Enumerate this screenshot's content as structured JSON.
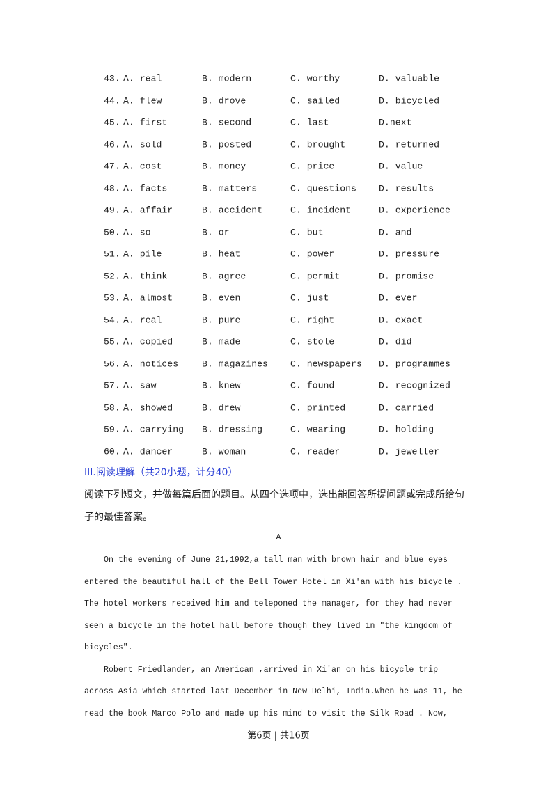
{
  "questions": [
    {
      "number": "43.",
      "options": [
        "A. real",
        "B. modern",
        "C. worthy",
        "D. valuable"
      ]
    },
    {
      "number": "44.",
      "options": [
        "A. flew",
        "B. drove",
        "C. sailed",
        "D. bicycled"
      ]
    },
    {
      "number": "45.",
      "options": [
        "A. first",
        "B. second",
        "C. last",
        "D.next"
      ]
    },
    {
      "number": "46.",
      "options": [
        "A. sold",
        "B. posted",
        "C. brought",
        "D. returned"
      ]
    },
    {
      "number": "47.",
      "options": [
        "A. cost",
        "B. money",
        "C. price",
        "D. value"
      ]
    },
    {
      "number": "48.",
      "options": [
        "A. facts",
        "B. matters",
        "C. questions",
        "D. results"
      ]
    },
    {
      "number": "49.",
      "options": [
        "A. affair",
        "B. accident",
        "C. incident",
        "D. experience"
      ]
    },
    {
      "number": "50.",
      "options": [
        "A. so",
        "B. or",
        "C. but",
        "D. and"
      ]
    },
    {
      "number": "51.",
      "options": [
        "A. pile",
        "B. heat",
        "C. power",
        "D. pressure"
      ]
    },
    {
      "number": "52.",
      "options": [
        "A. think",
        "B. agree",
        "C. permit",
        "D. promise"
      ]
    },
    {
      "number": "53.",
      "options": [
        "A. almost",
        "B. even",
        "C. just",
        "D. ever"
      ]
    },
    {
      "number": "54.",
      "options": [
        "A. real",
        "B. pure",
        "C. right",
        "D. exact"
      ]
    },
    {
      "number": "55.",
      "options": [
        "A. copied",
        "B. made",
        "C. stole",
        "D. did"
      ]
    },
    {
      "number": "56.",
      "options": [
        "A. notices",
        "B. magazines",
        "C. newspapers",
        "D. programmes"
      ]
    },
    {
      "number": "57.",
      "options": [
        "A. saw",
        "B. knew",
        "C. found",
        "D. recognized"
      ]
    },
    {
      "number": "58.",
      "options": [
        "A. showed",
        "B. drew",
        "C. printed",
        "D. carried"
      ]
    },
    {
      "number": "59.",
      "options": [
        "A. carrying",
        "B. dressing",
        "C. wearing",
        "D. holding"
      ]
    },
    {
      "number": "60.",
      "options": [
        "A. dancer",
        "B. woman",
        "C. reader",
        "D. jeweller"
      ]
    }
  ],
  "section": {
    "heading": "III.阅读理解（共20小题，计分40）",
    "instructions": [
      "阅读下列短文，并做每篇后面的题目。从四个选项中，选出能回答所提问题或完成所给句",
      "子的最佳答案。"
    ]
  },
  "passage": {
    "title": "A",
    "paragraphs": [
      [
        "On the evening of June 21,1992,a tall man with brown hair and blue eyes",
        "entered the beautiful hall of the Bell Tower Hotel in Xi'an with his bicycle .",
        "The hotel workers received him and teleponed the manager, for they had never",
        "seen a bicycle in the hotel hall before though they lived in \"the kingdom of",
        "bicycles\"."
      ],
      [
        "Robert Friedlander, an American ,arrived in Xi'an on his bicycle trip",
        "across Asia which started last December in New Delhi, India.When he was 11, he",
        "read the book Marco Polo and made up his mind to visit the Silk Road . Now,"
      ]
    ]
  },
  "footer": "第6页 | 共16页"
}
